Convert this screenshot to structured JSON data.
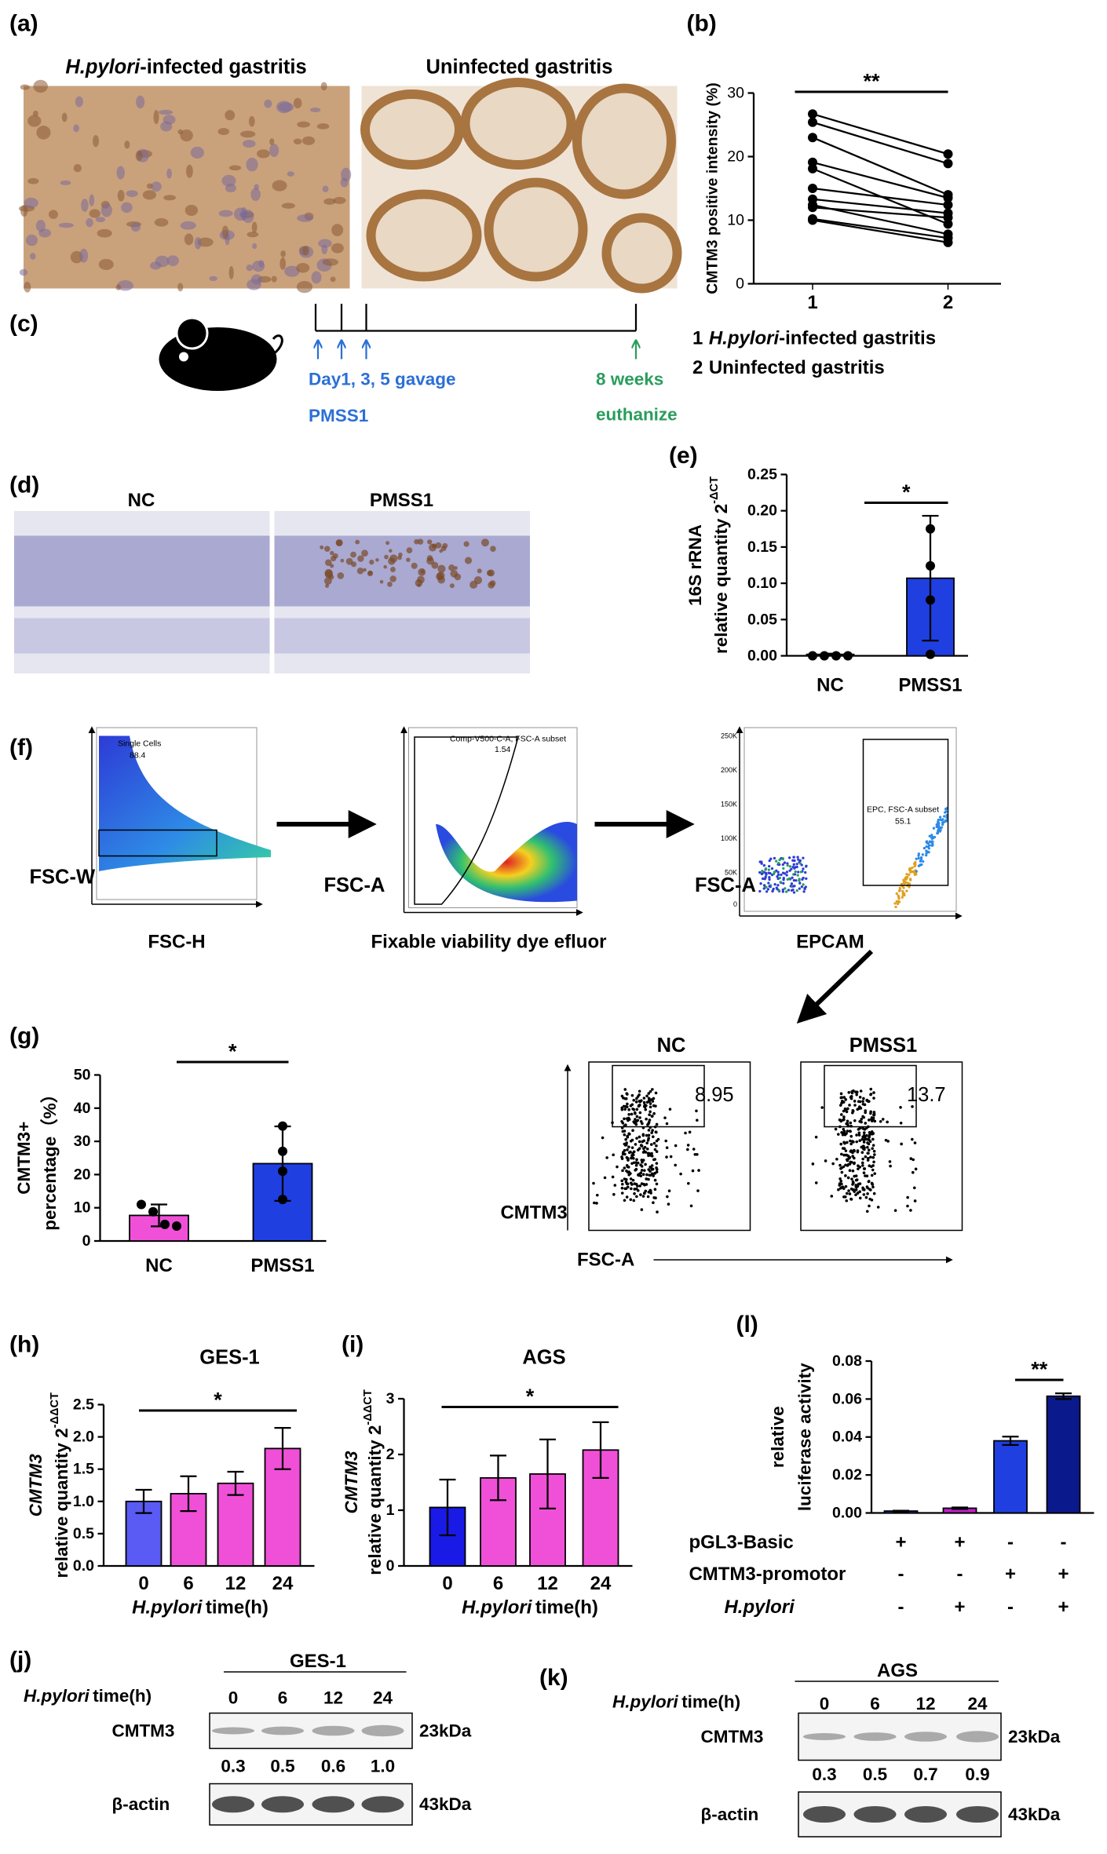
{
  "panel_labels": [
    "(a)",
    "(b)",
    "(c)",
    "(d)",
    "(e)",
    "(f)",
    "(g)",
    "(h)",
    "(i)",
    "(j)",
    "(k)",
    "(l)"
  ],
  "panel_a": {
    "title_1_italic": "H.pylori",
    "title_1": "-infected gastritis",
    "title_2": "Uninfected gastritis"
  },
  "panel_b_legend": [
    {
      "number": "1",
      "italic": "H.pylori",
      "text": "-infected gastritis"
    },
    {
      "number": "2",
      "text": "Uninfected gastritis"
    }
  ],
  "panel_c": {
    "gavage": "Day1, 3, 5 gavage",
    "strain": "PMSS1",
    "endpoint": "8 weeks",
    "action": "euthanize"
  },
  "panel_d": {
    "titles": [
      "NC",
      "PMSS1"
    ]
  },
  "panel_f": {
    "gates": [
      {
        "name": "Single Cells",
        "value": "88.4"
      },
      {
        "name": "Comp-V500-C-A, FSC-A subset",
        "value": "1.54"
      },
      {
        "name": "EPC, FSC-A subset",
        "value": "55.1"
      }
    ],
    "y_labels": [
      "FSC-W",
      "FSC-A",
      "FSC-A"
    ],
    "x_labels": [
      "FSC-H",
      "Fixable viability dye efluor",
      "EPCAM"
    ],
    "epcam_yticks": [
      "250K",
      "200K",
      "150K",
      "100K",
      "50K",
      "0"
    ]
  },
  "panel_g_flow": {
    "titles": [
      "NC",
      "PMSS1"
    ],
    "gate_values": [
      "8.95",
      "13.7"
    ],
    "y_label": "CMTM3",
    "x_label": "FSC-A"
  },
  "panel_j": {
    "title": "GES-1",
    "time_italic": "H.pylori",
    "time": "time(h)",
    "lanes": [
      "0",
      "6",
      "12",
      "24"
    ],
    "bands": [
      {
        "name": "CMTM3",
        "size": "23kDa"
      },
      {
        "name": "β-actin",
        "size": "43kDa"
      }
    ],
    "quantification": [
      "0.3",
      "0.5",
      "0.6",
      "1.0"
    ]
  },
  "panel_k": {
    "title": "AGS",
    "time_italic": "H.pylori",
    "time": "time(h)",
    "lanes": [
      "0",
      "6",
      "12",
      "24"
    ],
    "bands": [
      {
        "name": "CMTM3",
        "size": "23kDa"
      },
      {
        "name": "β-actin",
        "size": "43kDa"
      }
    ],
    "quantification": [
      "0.3",
      "0.5",
      "0.7",
      "0.9"
    ]
  },
  "chart_data": [
    {
      "type": "line",
      "y_label": "CMTM3 positive intensity (%)",
      "categories": [
        "1",
        "2"
      ],
      "values": [
        [
          26.7,
          20.4
        ],
        [
          25.4,
          18.9
        ],
        [
          23,
          14
        ],
        [
          19.1,
          13.5
        ],
        [
          18.1,
          9.4
        ],
        [
          15,
          12.4
        ],
        [
          13.3,
          11.1
        ],
        [
          12.4,
          7.8
        ],
        [
          12,
          10.4
        ],
        [
          10.2,
          7.2
        ],
        [
          10,
          6.5
        ]
      ],
      "color": "#000000",
      "ylim": [
        0,
        30
      ],
      "yticks": [
        0,
        10,
        20,
        30
      ],
      "significance": "**"
    },
    {
      "type": "bar",
      "y_label": "16S rRNA",
      "y_label_2": "relative quantity 2",
      "y_label_2_sup": "-ΔCT",
      "categories": [
        "NC",
        "PMSS1"
      ],
      "values": [
        0.002,
        0.107
      ],
      "errors": [
        0.001,
        0.086
      ],
      "points": [
        [
          0,
          0,
          0,
          0
        ],
        [
          0.175,
          0.124,
          0.077,
          0.002
        ]
      ],
      "colors": [
        "#ffffff",
        "#1f3fe0"
      ],
      "ylim": [
        0,
        0.25
      ],
      "yticks": [
        {
          "value": 0,
          "label": "0.00"
        },
        {
          "value": 0.05,
          "label": "0.05"
        },
        {
          "value": 0.1,
          "label": "0.10"
        },
        {
          "value": 0.15,
          "label": "0.15"
        },
        {
          "value": 0.2,
          "label": "0.20"
        },
        {
          "value": 0.25,
          "label": "0.25"
        }
      ],
      "significance": "*"
    },
    {
      "type": "bar",
      "y_label": "CMTM3+",
      "y_label_2": "percentage（%）",
      "categories": [
        "NC",
        "PMSS1"
      ],
      "values": [
        7.7,
        23.3
      ],
      "errors": [
        3.3,
        11.2
      ],
      "points": [
        [
          11,
          8.8,
          5,
          4.5
        ],
        [
          34.6,
          27,
          21,
          12.5
        ]
      ],
      "colors": [
        "#f050d8",
        "#1f3fe0"
      ],
      "ylim": [
        0,
        50
      ],
      "yticks": [
        0,
        10,
        20,
        30,
        40,
        50
      ],
      "significance": "*"
    },
    {
      "type": "bar",
      "title": "GES-1",
      "y_label_italic": "CMTM3",
      "y_label_2": "relative quantity 2",
      "y_label_2_sup": "-ΔΔCT",
      "x_label_italic": "H.pylori",
      "x_label": "time(h)",
      "categories": [
        "0",
        "6",
        "12",
        "24"
      ],
      "values": [
        1.0,
        1.12,
        1.28,
        1.82
      ],
      "errors": [
        0.18,
        0.27,
        0.18,
        0.32
      ],
      "colors": [
        "#5a5af5",
        "#f050d8",
        "#f050d8",
        "#f050d8"
      ],
      "ylim": [
        0,
        2.5
      ],
      "yticks": [
        {
          "value": 0,
          "label": "0.0"
        },
        0.5,
        {
          "value": 1,
          "label": "1.0"
        },
        1.5,
        {
          "value": 2,
          "label": "2.0"
        },
        2.5
      ],
      "significance": "*"
    },
    {
      "type": "bar",
      "title": "AGS",
      "y_label_italic": "CMTM3",
      "y_label_2": "relative quantity 2",
      "y_label_2_sup": "-ΔΔCT",
      "x_label_italic": "H.pylori",
      "x_label": "time(h)",
      "categories": [
        "0",
        "6",
        "12",
        "24"
      ],
      "values": [
        1.05,
        1.58,
        1.65,
        2.08
      ],
      "errors": [
        0.5,
        0.4,
        0.62,
        0.5
      ],
      "colors": [
        "#1a1ae6",
        "#f050d8",
        "#f050d8",
        "#f050d8"
      ],
      "ylim": [
        0,
        3
      ],
      "yticks": [
        0,
        1,
        2,
        3
      ],
      "significance": "*"
    },
    {
      "type": "bar",
      "y_label": "relative",
      "y_label_2": "luciferase activity",
      "categories": [
        null,
        null,
        null,
        null
      ],
      "values": [
        0.001,
        0.0025,
        0.038,
        0.0615
      ],
      "errors": [
        0.0002,
        0.0004,
        0.0022,
        0.0015
      ],
      "colors": [
        "#1f3fe0",
        "#c020c8",
        "#1f3fe0",
        "#0a1a8c"
      ],
      "ylim": [
        0,
        0.08
      ],
      "yticks": [
        {
          "value": 0,
          "label": "0.00"
        },
        {
          "value": 0.02,
          "label": "0.02"
        },
        {
          "value": 0.04,
          "label": "0.04"
        },
        {
          "value": 0.06,
          "label": "0.06"
        },
        {
          "value": 0.08,
          "label": "0.08"
        }
      ],
      "significance": "**",
      "conditions": [
        {
          "name": "pGL3-Basic",
          "signs": [
            "+",
            "+",
            "-",
            "-"
          ]
        },
        {
          "name": "CMTM3-promotor",
          "signs": [
            "-",
            "-",
            "+",
            "+"
          ]
        },
        {
          "name_italic": "H.pylori",
          "signs": [
            "-",
            "+",
            "-",
            "+"
          ]
        }
      ]
    }
  ]
}
